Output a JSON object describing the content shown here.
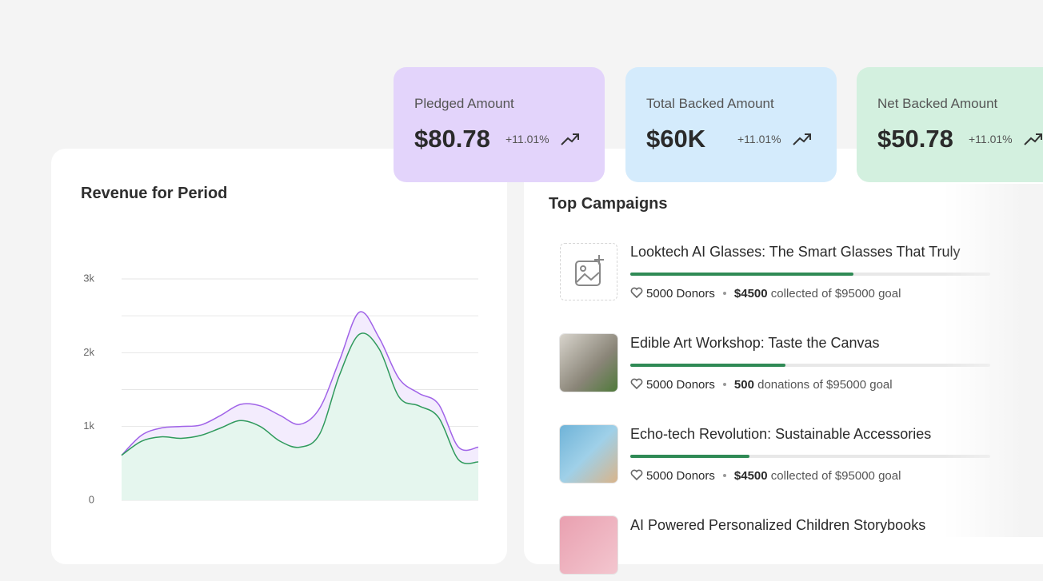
{
  "stat_cards": [
    {
      "label": "Pledged Amount",
      "value": "$80.78",
      "change": "+11.01%"
    },
    {
      "label": "Total Backed Amount",
      "value": "$60K",
      "change": "+11.01%"
    },
    {
      "label": "Net Backed Amount",
      "value": "$50.78",
      "change": "+11.01%"
    }
  ],
  "chart_data": {
    "type": "area",
    "title": "Revenue for Period",
    "categories": [
      null,
      null,
      null,
      null,
      null,
      null,
      null,
      null,
      null,
      null,
      null,
      null,
      null,
      null,
      null,
      null,
      null,
      null,
      null
    ],
    "series": [
      {
        "color": "#a063e8",
        "fill": "#f3ecfd",
        "values": [
          610,
          880,
          980,
          1000,
          1020,
          1150,
          1300,
          1280,
          1150,
          1030,
          1250,
          1900,
          2550,
          2200,
          1650,
          1450,
          1300,
          720,
          720
        ]
      },
      {
        "color": "#2f9a5c",
        "fill": "#e5f6ee",
        "values": [
          610,
          800,
          860,
          840,
          880,
          980,
          1080,
          1000,
          800,
          720,
          900,
          1700,
          2250,
          2050,
          1400,
          1280,
          1120,
          550,
          520
        ]
      }
    ],
    "ylim": [
      0,
      3000
    ],
    "yticks": [
      {
        "value": 0,
        "label": "0"
      },
      {
        "value": 1000,
        "label": "1k"
      },
      {
        "value": 2000,
        "label": "2k"
      },
      {
        "value": 3000,
        "label": "3k"
      }
    ],
    "minor_yticks": [
      1500,
      2500
    ],
    "grid": true
  },
  "top_campaigns": {
    "title": "Top Campaigns",
    "items": [
      {
        "title": "Looktech AI Glasses: The Smart Glasses That Truly",
        "progress": 62,
        "donors": "5000 Donors",
        "amount": "$4500",
        "detail": "collected of $95000 goal"
      },
      {
        "title": "Edible Art Workshop: Taste the Canvas",
        "progress": 43,
        "donors": "5000 Donors",
        "amount": "500",
        "detail": "donations of $95000 goal"
      },
      {
        "title": "Echo-tech Revolution: Sustainable Accessories",
        "progress": 33,
        "donors": "5000 Donors",
        "amount": "$4500",
        "detail": "collected of $95000 goal"
      },
      {
        "title": "AI Powered Personalized Children Storybooks"
      }
    ]
  }
}
